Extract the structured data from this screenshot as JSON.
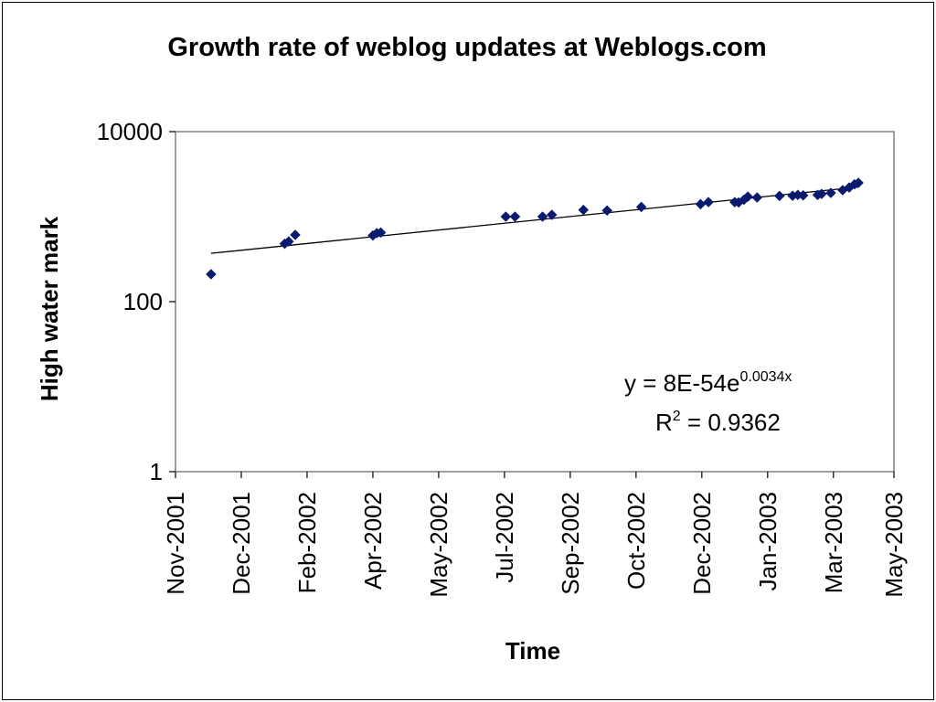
{
  "chart_data": {
    "type": "scatter",
    "title": "Growth rate of weblog updates at Weblogs.com",
    "xlabel": "Time",
    "ylabel": "High water mark",
    "y_scale": "log",
    "ylim": [
      1,
      10000
    ],
    "y_ticks": [
      "1",
      "100",
      "10000"
    ],
    "xlim": [
      "2001-10-31",
      "2003-04-30"
    ],
    "x_ticks": [
      "Nov-2001",
      "Dec-2001",
      "Feb-2002",
      "Apr-2002",
      "May-2002",
      "Jul-2002",
      "Sep-2002",
      "Oct-2002",
      "Dec-2002",
      "Jan-2003",
      "Mar-2003",
      "May-2003"
    ],
    "x_tick_dates": [
      "2001-10-31",
      "2001-12-20",
      "2002-02-08",
      "2002-03-30",
      "2002-05-19",
      "2002-07-08",
      "2002-08-27",
      "2002-10-16",
      "2002-12-05",
      "2003-01-24",
      "2003-03-15",
      "2003-05-04"
    ],
    "grid": false,
    "legend": "none",
    "colors": {
      "points": "#0a1a6e",
      "trendline": "#000000",
      "plot_border": "#808080",
      "background": "#ffffff"
    },
    "series": [
      {
        "points": [
          [
            "2001-11-27",
            210
          ],
          [
            "2002-01-22",
            480
          ],
          [
            "2002-01-25",
            510
          ],
          [
            "2002-01-30",
            610
          ],
          [
            "2002-03-30",
            600
          ],
          [
            "2002-04-02",
            640
          ],
          [
            "2002-04-05",
            650
          ],
          [
            "2002-07-09",
            1000
          ],
          [
            "2002-07-16",
            1000
          ],
          [
            "2002-08-06",
            1000
          ],
          [
            "2002-08-13",
            1050
          ],
          [
            "2002-09-06",
            1200
          ],
          [
            "2002-09-24",
            1180
          ],
          [
            "2002-10-20",
            1300
          ],
          [
            "2002-12-04",
            1400
          ],
          [
            "2002-12-10",
            1480
          ],
          [
            "2002-12-30",
            1480
          ],
          [
            "2003-01-02",
            1470
          ],
          [
            "2003-01-06",
            1580
          ],
          [
            "2003-01-09",
            1720
          ],
          [
            "2003-01-16",
            1680
          ],
          [
            "2003-02-02",
            1750
          ],
          [
            "2003-02-12",
            1760
          ],
          [
            "2003-02-16",
            1800
          ],
          [
            "2003-02-20",
            1780
          ],
          [
            "2003-03-03",
            1800
          ],
          [
            "2003-03-06",
            1850
          ],
          [
            "2003-03-13",
            1900
          ],
          [
            "2003-03-22",
            2050
          ],
          [
            "2003-03-27",
            2200
          ],
          [
            "2003-03-31",
            2400
          ],
          [
            "2003-04-03",
            2500
          ]
        ]
      }
    ],
    "trendline": {
      "type": "exponential",
      "from": [
        "2001-11-27",
        370
      ],
      "to": [
        "2003-04-03",
        2230
      ]
    },
    "equation": {
      "prefix": "y = 8E-54e",
      "exponent": "0.0034x",
      "r2_label": "R",
      "r2_sup": "2",
      "r2_value": " = 0.9362"
    }
  }
}
